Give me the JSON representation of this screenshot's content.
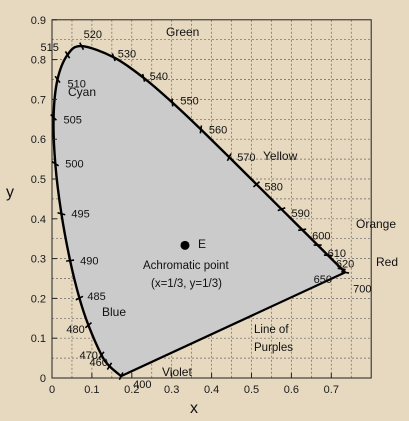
{
  "chart_data": {
    "type": "diagram",
    "xlabel": "x",
    "ylabel": "y",
    "xlim": [
      0,
      0.8
    ],
    "ylim": [
      0,
      0.9
    ],
    "x_ticks": [
      "0",
      "0.1",
      "0.2",
      "0.3",
      "0.4",
      "0.5",
      "0.6",
      "0.7"
    ],
    "y_ticks": [
      "0",
      "0.1",
      "0.2",
      "0.3",
      "0.4",
      "0.5",
      "0.6",
      "0.7",
      "0.8",
      "0.9"
    ],
    "grid": true,
    "locus": [
      {
        "nm": 400,
        "x": 0.1733,
        "y": 0.0048
      },
      {
        "nm": 460,
        "x": 0.144,
        "y": 0.0297
      },
      {
        "nm": 470,
        "x": 0.1241,
        "y": 0.0578
      },
      {
        "nm": 480,
        "x": 0.0913,
        "y": 0.1327
      },
      {
        "nm": 485,
        "x": 0.0687,
        "y": 0.2007
      },
      {
        "nm": 490,
        "x": 0.0454,
        "y": 0.295
      },
      {
        "nm": 495,
        "x": 0.0235,
        "y": 0.4127
      },
      {
        "nm": 500,
        "x": 0.0082,
        "y": 0.5384
      },
      {
        "nm": 505,
        "x": 0.0039,
        "y": 0.6548
      },
      {
        "nm": 510,
        "x": 0.0139,
        "y": 0.7502
      },
      {
        "nm": 515,
        "x": 0.0389,
        "y": 0.812
      },
      {
        "nm": 520,
        "x": 0.0743,
        "y": 0.8338
      },
      {
        "nm": 530,
        "x": 0.1547,
        "y": 0.8059
      },
      {
        "nm": 540,
        "x": 0.2296,
        "y": 0.7543
      },
      {
        "nm": 550,
        "x": 0.3016,
        "y": 0.6923
      },
      {
        "nm": 560,
        "x": 0.3731,
        "y": 0.6245
      },
      {
        "nm": 570,
        "x": 0.4441,
        "y": 0.5547
      },
      {
        "nm": 580,
        "x": 0.5125,
        "y": 0.4866
      },
      {
        "nm": 590,
        "x": 0.5752,
        "y": 0.4242
      },
      {
        "nm": 600,
        "x": 0.627,
        "y": 0.3725
      },
      {
        "nm": 610,
        "x": 0.6658,
        "y": 0.334
      },
      {
        "nm": 620,
        "x": 0.6915,
        "y": 0.3083
      },
      {
        "nm": 650,
        "x": 0.726,
        "y": 0.274
      },
      {
        "nm": 700,
        "x": 0.7347,
        "y": 0.2653
      }
    ],
    "wavelength_labels": [
      "400",
      "460",
      "470",
      "480",
      "485",
      "490",
      "495",
      "500",
      "505",
      "510",
      "515",
      "520",
      "530",
      "540",
      "550",
      "560",
      "570",
      "580",
      "590",
      "600",
      "610",
      "620",
      "650",
      "700"
    ],
    "achromatic_point": {
      "x": 0.3333,
      "y": 0.3333,
      "marker_label": "E"
    },
    "annotations": {
      "green": "Green",
      "cyan": "Cyan",
      "yellow": "Yellow",
      "orange": "Orange",
      "red": "Red",
      "blue": "Blue",
      "violet": "Violet",
      "achromatic_line1": "Achromatic point",
      "achromatic_line2": "(x=1/3, y=1/3)",
      "purples_line1": "Line of",
      "purples_line2": "Purples"
    },
    "colors": {
      "background": "#e6d9c0",
      "fill": "#cbcbcb",
      "grid": "#666666",
      "curve": "#000000"
    }
  }
}
